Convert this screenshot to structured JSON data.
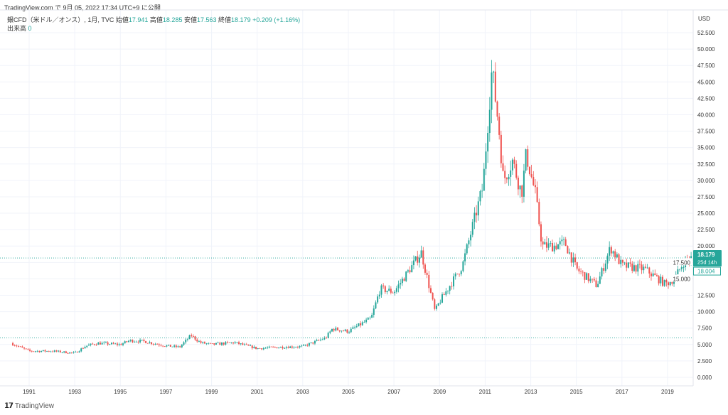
{
  "header": {
    "published": "TradingView.com で 9月 05, 2022 17:34 UTC+9 に公開"
  },
  "legend": {
    "symbol": "銀CFD（米ドル／オンス）, 1月, TVC",
    "open_label": "始値",
    "open": "17.941",
    "high_label": "高値",
    "high": "18.285",
    "low_label": "安値",
    "low": "17.563",
    "close_label": "終値",
    "close": "18.179",
    "change": "+0.209 (+1.16%)",
    "volume_label": "出来高",
    "volume": "0"
  },
  "brand": {
    "name": "TradingView"
  },
  "chart_data": {
    "type": "candlestick",
    "interval": "1M",
    "currency": "USD",
    "y_ticks": [
      "0.000",
      "2.500",
      "5.000",
      "7.500",
      "10.000",
      "12.500",
      "15.000",
      "17.500",
      "20.000",
      "22.500",
      "25.000",
      "27.500",
      "30.000",
      "32.500",
      "35.000",
      "37.500",
      "40.000",
      "42.500",
      "45.000",
      "47.500",
      "50.000",
      "52.500"
    ],
    "ylim": [
      0,
      52.5
    ],
    "x_ticks": [
      "1991",
      "1993",
      "1995",
      "1997",
      "1999",
      "2001",
      "2003",
      "2005",
      "2007",
      "2009",
      "2011",
      "2013",
      "2015",
      "2017",
      "2019"
    ],
    "xlim": [
      1990.0,
      2020.1
    ],
    "last_price": "18.179",
    "countdown": "25d 14h",
    "prev_price": "18.004",
    "ref_line": 6.0,
    "price_path": [
      [
        1990.2,
        5.2
      ],
      [
        1991,
        4.0
      ],
      [
        1992,
        4.0
      ],
      [
        1993,
        3.7
      ],
      [
        1993.5,
        4.8
      ],
      [
        1994,
        5.2
      ],
      [
        1995,
        5.0
      ],
      [
        1995.4,
        5.6
      ],
      [
        1996,
        5.5
      ],
      [
        1997,
        4.8
      ],
      [
        1997.6,
        4.6
      ],
      [
        1998.1,
        6.4
      ],
      [
        1998.5,
        5.3
      ],
      [
        1999,
        5.0
      ],
      [
        2000,
        5.3
      ],
      [
        2001,
        4.4
      ],
      [
        2002,
        4.6
      ],
      [
        2003,
        4.7
      ],
      [
        2004,
        6.0
      ],
      [
        2004.3,
        7.4
      ],
      [
        2005,
        7.0
      ],
      [
        2006,
        9.0
      ],
      [
        2006.4,
        13.5
      ],
      [
        2007,
        13.0
      ],
      [
        2008.2,
        19.0
      ],
      [
        2008.8,
        10.0
      ],
      [
        2009,
        11.5
      ],
      [
        2010,
        17.0
      ],
      [
        2010.9,
        29.0
      ],
      [
        2011.3,
        47.0
      ],
      [
        2011.6,
        38.0
      ],
      [
        2011.8,
        30.0
      ],
      [
        2012.2,
        33.0
      ],
      [
        2012.6,
        28.0
      ],
      [
        2012.8,
        34.0
      ],
      [
        2013.2,
        28.0
      ],
      [
        2013.5,
        20.0
      ],
      [
        2014,
        20.0
      ],
      [
        2014.5,
        20.5
      ],
      [
        2015,
        16.5
      ],
      [
        2015.9,
        14.0
      ],
      [
        2016.5,
        19.8
      ],
      [
        2017,
        17.0
      ],
      [
        2018,
        16.5
      ],
      [
        2018.9,
        14.2
      ],
      [
        2019.3,
        15.0
      ],
      [
        2019.7,
        17.5
      ],
      [
        2020.05,
        18.18
      ]
    ],
    "colors": {
      "up": "#26a69a",
      "down": "#ef5350"
    }
  }
}
